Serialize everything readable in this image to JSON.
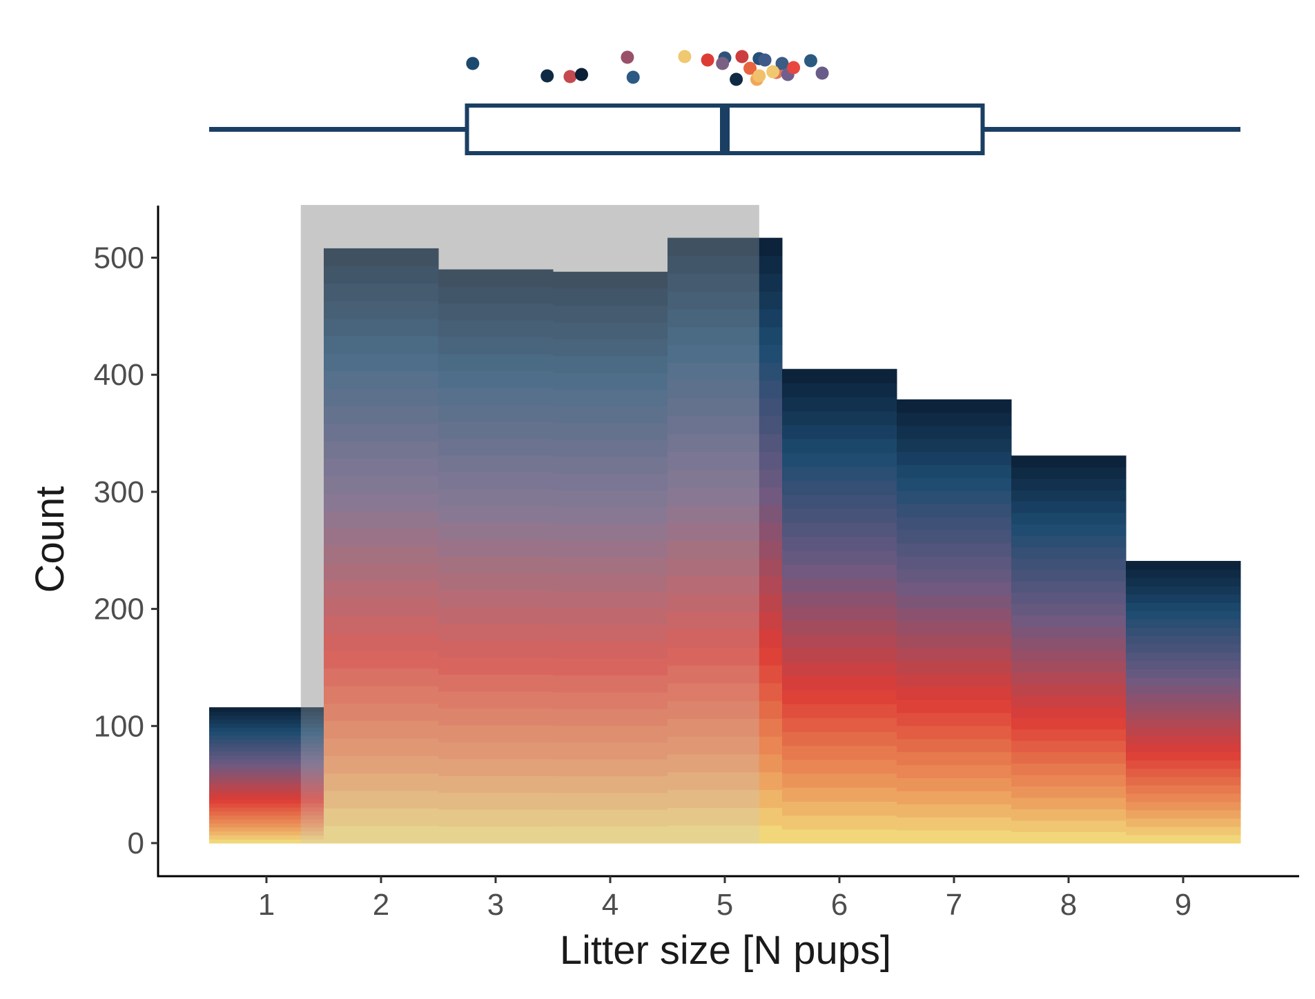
{
  "chart_data": {
    "type": "bar",
    "xlabel": "Litter size [N pups]",
    "ylabel": "Count",
    "categories": [
      "1",
      "2",
      "3",
      "4",
      "5",
      "6",
      "7",
      "8",
      "9"
    ],
    "values": [
      116,
      508,
      490,
      488,
      517,
      405,
      379,
      331,
      241
    ],
    "ylim": [
      0,
      545
    ],
    "y_ticks": [
      0,
      100,
      200,
      300,
      400,
      500
    ],
    "grid": false,
    "legend": "none",
    "shaded_region": {
      "x_from": 1.3,
      "x_to": 5.3,
      "y_to": 545
    },
    "boxplot": {
      "whisker_low": 0.5,
      "q1": 2.75,
      "median": 5.0,
      "q3": 7.25,
      "whisker_high": 9.5
    },
    "jitter_points": [
      {
        "x": 2.8,
        "color": "#1c4a6e"
      },
      {
        "x": 3.45,
        "color": "#102a44"
      },
      {
        "x": 3.65,
        "color": "#c34a4f"
      },
      {
        "x": 3.75,
        "color": "#0b1f36"
      },
      {
        "x": 4.15,
        "color": "#9a5068"
      },
      {
        "x": 4.2,
        "color": "#2c5a84"
      },
      {
        "x": 4.65,
        "color": "#f0c870"
      },
      {
        "x": 4.85,
        "color": "#dd3c35"
      },
      {
        "x": 5.0,
        "color": "#2e5378"
      },
      {
        "x": 4.98,
        "color": "#7a6184"
      },
      {
        "x": 5.15,
        "color": "#cc3d40"
      },
      {
        "x": 5.1,
        "color": "#102a44"
      },
      {
        "x": 5.22,
        "color": "#e8643e"
      },
      {
        "x": 5.3,
        "color": "#24507a"
      },
      {
        "x": 5.35,
        "color": "#405a88"
      },
      {
        "x": 5.28,
        "color": "#f0a858"
      },
      {
        "x": 5.45,
        "color": "#e07258"
      },
      {
        "x": 5.5,
        "color": "#3a5c85"
      },
      {
        "x": 5.42,
        "color": "#f0c870"
      },
      {
        "x": 5.55,
        "color": "#705f8c"
      },
      {
        "x": 5.6,
        "color": "#e8463e"
      },
      {
        "x": 5.75,
        "color": "#2b5a80"
      },
      {
        "x": 5.85,
        "color": "#6a5c88"
      },
      {
        "x": 5.3,
        "color": "#f2c06a"
      }
    ],
    "colors": {
      "gradient_top": "#0b1f36",
      "gradient_blue": "#1d4b70",
      "gradient_purple": "#6e5a82",
      "gradient_red": "#dd3c35",
      "gradient_orange": "#ec9a5c",
      "gradient_bottom": "#f2df7e",
      "shade": "#c8c8c8",
      "box": "#1b3f63"
    }
  }
}
